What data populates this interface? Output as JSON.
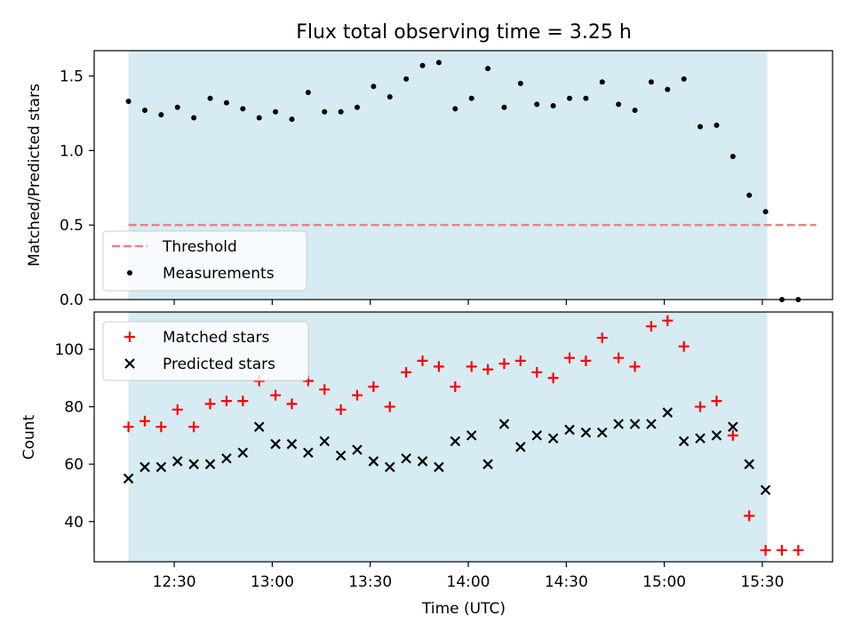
{
  "chart_data": {
    "title": "Flux total observing time = 3.25 h",
    "xlabel": "Time (UTC)",
    "x_ticks": [
      "12:30",
      "13:00",
      "13:30",
      "14:00",
      "14:30",
      "15:00",
      "15:30"
    ],
    "x_tick_minutes": [
      750,
      780,
      810,
      840,
      870,
      900,
      930
    ],
    "xlim_minutes": [
      725.5,
      951.5
    ],
    "observing_window_minutes": [
      736,
      931.5
    ],
    "colors": {
      "window": "#add8e6",
      "threshold": "#f08080",
      "matched": "#ff0000",
      "predicted": "#000000",
      "measurement": "#000000"
    },
    "times": [
      "12:16",
      "12:21",
      "12:26",
      "12:31",
      "12:36",
      "12:41",
      "12:46",
      "12:51",
      "12:56",
      "13:01",
      "13:06",
      "13:11",
      "13:16",
      "13:21",
      "13:26",
      "13:31",
      "13:36",
      "13:41",
      "13:46",
      "13:51",
      "13:56",
      "14:01",
      "14:06",
      "14:11",
      "14:16",
      "14:21",
      "14:26",
      "14:31",
      "14:36",
      "14:41",
      "14:46",
      "14:51",
      "14:56",
      "15:01",
      "15:06",
      "15:11",
      "15:16",
      "15:21",
      "15:26",
      "15:31",
      "15:36",
      "15:41"
    ],
    "top": {
      "type": "scatter",
      "ylabel": "Matched/Predicted stars",
      "ylim": [
        0,
        1.67
      ],
      "y_ticks": [
        "0.0",
        "0.5",
        "1.0",
        "1.5"
      ],
      "y_tick_values": [
        0,
        0.5,
        1.0,
        1.5
      ],
      "threshold": {
        "label": "Threshold",
        "value": 0.5,
        "x_range_minutes": [
          736,
          946.5
        ]
      },
      "measurements": {
        "label": "Measurements",
        "values": [
          1.33,
          1.27,
          1.24,
          1.29,
          1.22,
          1.35,
          1.32,
          1.28,
          1.22,
          1.26,
          1.21,
          1.39,
          1.26,
          1.26,
          1.29,
          1.43,
          1.36,
          1.48,
          1.57,
          1.59,
          1.28,
          1.35,
          1.55,
          1.29,
          1.45,
          1.31,
          1.3,
          1.35,
          1.35,
          1.46,
          1.31,
          1.27,
          1.46,
          1.41,
          1.48,
          1.16,
          1.17,
          0.96,
          0.7,
          0.59,
          0.0,
          0.0
        ]
      },
      "legend_position": "lower-left"
    },
    "bottom": {
      "type": "scatter",
      "ylabel": "Count",
      "ylim": [
        26,
        113
      ],
      "y_ticks": [
        "40",
        "60",
        "80",
        "100"
      ],
      "y_tick_values": [
        40,
        60,
        80,
        100
      ],
      "series": [
        {
          "name": "Matched stars",
          "marker": "plus",
          "values": [
            73,
            75,
            73,
            79,
            73,
            81,
            82,
            82,
            89,
            84,
            81,
            89,
            86,
            79,
            84,
            87,
            80,
            92,
            96,
            94,
            87,
            94,
            93,
            95,
            96,
            92,
            90,
            97,
            96,
            104,
            97,
            94,
            108,
            110,
            101,
            80,
            82,
            70,
            42,
            30,
            30,
            30
          ]
        },
        {
          "name": "Predicted stars",
          "marker": "x",
          "values": [
            55,
            59,
            59,
            61,
            60,
            60,
            62,
            64,
            73,
            67,
            67,
            64,
            68,
            63,
            65,
            61,
            59,
            62,
            61,
            59,
            68,
            70,
            60,
            74,
            66,
            70,
            69,
            72,
            71,
            71,
            74,
            74,
            74,
            78,
            68,
            69,
            70,
            73,
            60,
            51,
            null,
            null
          ]
        }
      ],
      "legend_position": "upper-left"
    }
  }
}
